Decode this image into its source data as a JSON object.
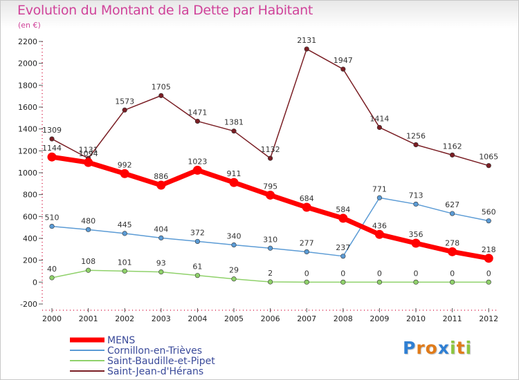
{
  "header": {
    "title": "Evolution du Montant de la Dette par Habitant",
    "subtitle": "(en €)"
  },
  "logo": {
    "text": "Proxiti",
    "letters": [
      "P",
      "r",
      "o",
      "x",
      "i",
      "t",
      "i"
    ],
    "colors": [
      "#2f7fd3",
      "#e07b1a",
      "#e07b1a",
      "#2f7fd3",
      "#8cc63f",
      "#e07b1a",
      "#8cc63f"
    ]
  },
  "chart_data": {
    "type": "line",
    "title": "Evolution du Montant de la Dette par Habitant",
    "subtitle": "(en €)",
    "categories": [
      "2000",
      "2001",
      "2002",
      "2003",
      "2004",
      "2005",
      "2006",
      "2007",
      "2008",
      "2009",
      "2010",
      "2011",
      "2012"
    ],
    "ylim": [
      -200,
      2200
    ],
    "yticks": [
      -200,
      0,
      200,
      400,
      600,
      800,
      1000,
      1200,
      1400,
      1600,
      1800,
      2000,
      2200
    ],
    "legend_position": "bottom-left",
    "grid": false,
    "series": [
      {
        "name": "Saint-Jean-d'Hérans",
        "color": "#7a1e24",
        "values": [
          1309,
          1131,
          1573,
          1705,
          1471,
          1381,
          1132,
          2131,
          1947,
          1414,
          1256,
          1162,
          1065
        ]
      },
      {
        "name": "Saint-Baudille-et-Pipet",
        "color": "#8fd16a",
        "values": [
          40,
          108,
          101,
          93,
          61,
          29,
          2,
          0,
          0,
          0,
          0,
          0,
          0
        ]
      },
      {
        "name": "Cornillon-en-Trièves",
        "color": "#5b9bd5",
        "values": [
          510,
          480,
          445,
          404,
          372,
          340,
          310,
          277,
          237,
          771,
          713,
          627,
          560
        ]
      },
      {
        "name": "MENS",
        "color": "#ff0000",
        "values": [
          1144,
          1094,
          992,
          886,
          1023,
          911,
          795,
          684,
          584,
          436,
          356,
          278,
          218
        ]
      }
    ],
    "legend": [
      "MENS",
      "Cornillon-en-Trièves",
      "Saint-Baudille-et-Pipet",
      "Saint-Jean-d'Hérans"
    ]
  }
}
